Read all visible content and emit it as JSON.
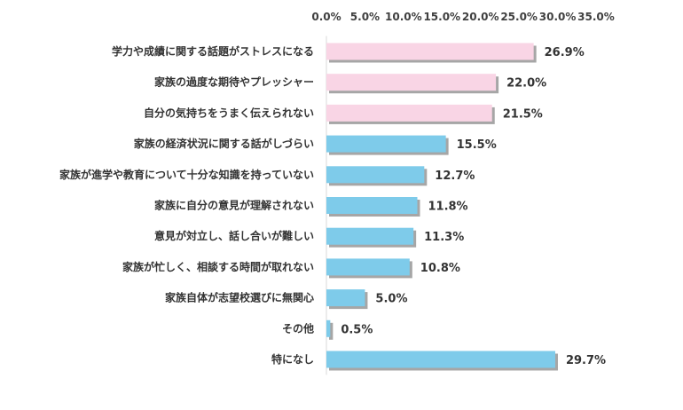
{
  "chart_data": {
    "type": "bar",
    "orientation": "horizontal",
    "categories": [
      "学力や成績に関する話題がストレスになる",
      "家族の過度な期待やプレッシャー",
      "自分の気持ちをうまく伝えられない",
      "家族の経済状況に関する話がしづらい",
      "家族が進学や教育について十分な知識を持っていない",
      "家族に自分の意見が理解されない",
      "意見が対立し、話し合いが難しい",
      "家族が忙しく、相談する時間が取れない",
      "家族自体が志望校選びに無関心",
      "その他",
      "特になし"
    ],
    "values": [
      26.9,
      22.0,
      21.5,
      15.5,
      12.7,
      11.8,
      11.3,
      10.8,
      5.0,
      0.5,
      29.7
    ],
    "value_labels": [
      "26.9%",
      "22.0%",
      "21.5%",
      "15.5%",
      "12.7%",
      "11.8%",
      "11.3%",
      "10.8%",
      "5.0%",
      "0.5%",
      "29.7%"
    ],
    "bar_colors": [
      "#f9d5e5",
      "#f9d5e5",
      "#f9d5e5",
      "#7ecbea",
      "#7ecbea",
      "#7ecbea",
      "#7ecbea",
      "#7ecbea",
      "#7ecbea",
      "#7ecbea",
      "#7ecbea"
    ],
    "xlim": [
      0,
      35
    ],
    "x_ticks": [
      "0.0%",
      "5.0%",
      "10.0%",
      "15.0%",
      "20.0%",
      "25.0%",
      "30.0%",
      "35.0%"
    ],
    "x_axis_position": "top",
    "grid": false,
    "legend": "none"
  }
}
